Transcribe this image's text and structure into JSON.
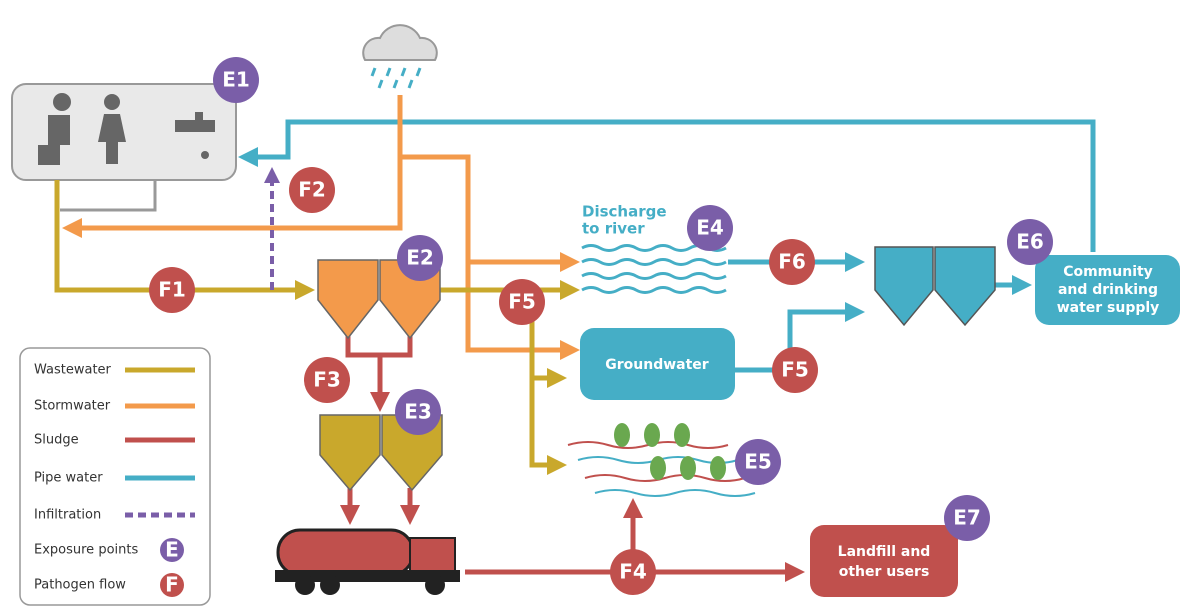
{
  "exposure_points": [
    "E1",
    "E2",
    "E3",
    "E4",
    "E5",
    "E6",
    "E7"
  ],
  "pathogen_flows": [
    "F1",
    "F2",
    "F3",
    "F4",
    "F5",
    "F5",
    "F6"
  ],
  "nodes": {
    "discharge": [
      "Discharge",
      "to river"
    ],
    "groundwater": "Groundwater",
    "community": [
      "Community",
      "and drinking",
      "water supply"
    ],
    "landfill": [
      "Landfill and",
      "other users"
    ]
  },
  "legend": {
    "items": [
      "Wastewater",
      "Stormwater",
      "Sludge",
      "Pipe water",
      "Infiltration",
      "Exposure points",
      "Pathogen flow"
    ],
    "badges": [
      "E",
      "F"
    ]
  }
}
